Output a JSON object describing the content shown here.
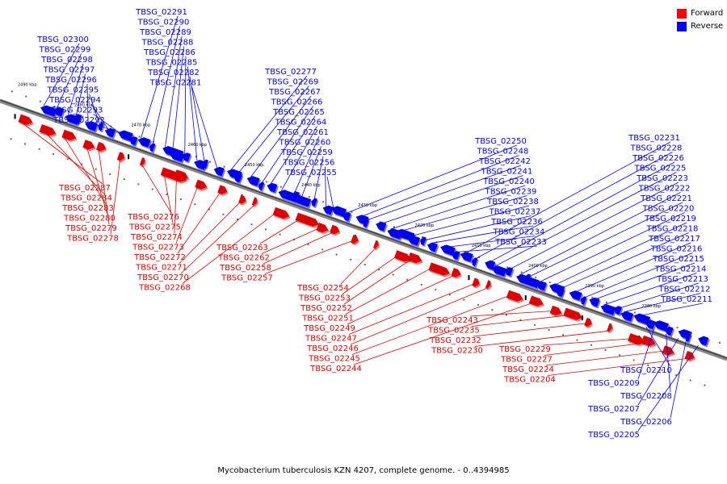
{
  "caption": "Mycobacterium tuberculosis KZN 4207, complete genome. - 0..4394985",
  "colors": {
    "forward": "#dd0000",
    "reverse": "#0000ee",
    "axis": "#777777"
  },
  "legend": [
    {
      "label": "Forward",
      "color": "#ff0000"
    },
    {
      "label": "Reverse",
      "color": "#0000ff"
    }
  ],
  "scale_ticks": [
    {
      "label": "2490 kbp",
      "bp": 2490000
    },
    {
      "label": "2480 kbp",
      "bp": 2480000
    },
    {
      "label": "2470 kbp",
      "bp": 2470000
    },
    {
      "label": "2460 kbp",
      "bp": 2460000
    },
    {
      "label": "2450 kbp",
      "bp": 2450000
    },
    {
      "label": "2440 kbp",
      "bp": 2440000
    },
    {
      "label": "2430 kbp",
      "bp": 2430000
    },
    {
      "label": "2420 kbp",
      "bp": 2420000
    },
    {
      "label": "2410 kbp",
      "bp": 2410000
    },
    {
      "label": "2400 kbp",
      "bp": 2400000
    },
    {
      "label": "2390 kbp",
      "bp": 2390000
    },
    {
      "label": "2380 kbp",
      "bp": 2380000
    }
  ],
  "genes": {
    "reverse": [
      "TBSG_02300",
      "TBSG_02299",
      "TBSG_02298",
      "TBSG_02297",
      "TBSG_02296",
      "TBSG_02295",
      "TBSG_02294",
      "TBSG_02293",
      "TBSG_02292",
      "TBSG_02291",
      "TBSG_02290",
      "TBSG_02289",
      "TBSG_02288",
      "TBSG_02286",
      "TBSG_02285",
      "TBSG_02282",
      "TBSG_02281",
      "TBSG_02277",
      "TBSG_02269",
      "TBSG_02267",
      "TBSG_02266",
      "TBSG_02265",
      "TBSG_02264",
      "TBSG_02261",
      "TBSG_02260",
      "TBSG_02259",
      "TBSG_02256",
      "TBSG_02255",
      "TBSG_02250",
      "TBSG_02248",
      "TBSG_02242",
      "TBSG_02241",
      "TBSG_02240",
      "TBSG_02239",
      "TBSG_02238",
      "TBSG_02237",
      "TBSG_02236",
      "TBSG_02234",
      "TBSG_02233",
      "TBSG_02231",
      "TBSG_02228",
      "TBSG_02226",
      "TBSG_02225",
      "TBSG_02223",
      "TBSG_02222",
      "TBSG_02221",
      "TBSG_02220",
      "TBSG_02219",
      "TBSG_02218",
      "TBSG_02217",
      "TBSG_02216",
      "TBSG_02215",
      "TBSG_02214",
      "TBSG_02213",
      "TBSG_02212",
      "TBSG_02211",
      "TBSG_02210",
      "TBSG_02209",
      "TBSG_02208",
      "TBSG_02207",
      "TBSG_02206",
      "TBSG_02205"
    ],
    "forward": [
      "TBSG_02287",
      "TBSG_02284",
      "TBSG_02283",
      "TBSG_02280",
      "TBSG_02279",
      "TBSG_02278",
      "TBSG_02276",
      "TBSG_02275",
      "TBSG_02274",
      "TBSG_02273",
      "TBSG_02272",
      "TBSG_02271",
      "TBSG_02270",
      "TBSG_02268",
      "TBSG_02263",
      "TBSG_02262",
      "TBSG_02258",
      "TBSG_02257",
      "TBSG_02254",
      "TBSG_02253",
      "TBSG_02252",
      "TBSG_02251",
      "TBSG_02249",
      "TBSG_02247",
      "TBSG_02246",
      "TBSG_02245",
      "TBSG_02244",
      "TBSG_02243",
      "TBSG_02235",
      "TBSG_02232",
      "TBSG_02230",
      "TBSG_02229",
      "TBSG_02227",
      "TBSG_02224",
      "TBSG_02204"
    ]
  }
}
